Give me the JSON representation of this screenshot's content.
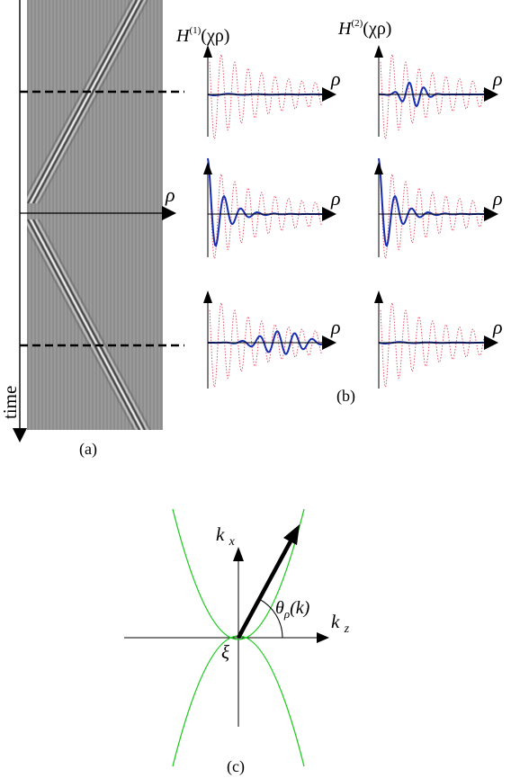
{
  "panel_a": {
    "caption": "(a)",
    "time_label": "time",
    "rho_label": "ρ"
  },
  "panel_b": {
    "caption": "(b)",
    "col1_header": {
      "base": "H",
      "sup": "(1)",
      "arg": "(χρ)"
    },
    "col2_header": {
      "base": "H",
      "sup": "(2)",
      "arg": "(χρ)"
    },
    "rho_label": "ρ",
    "rows": [
      {
        "col1": "flat",
        "col2": "bump_mid"
      },
      {
        "col1": "decay",
        "col2": "decay"
      },
      {
        "col1": "bump_far",
        "col2": "flat"
      }
    ],
    "colors": {
      "wave": "#1a2fb0",
      "reference": "#e0445a"
    }
  },
  "panel_c": {
    "caption": "(c)",
    "kx_label": "kx",
    "kz_label": "kz",
    "xi_label": "ξ",
    "theta_label": {
      "symbol": "θ",
      "sub": "ρ",
      "arg": "(k)"
    },
    "colors": {
      "parabola": "#22cc22"
    }
  }
}
